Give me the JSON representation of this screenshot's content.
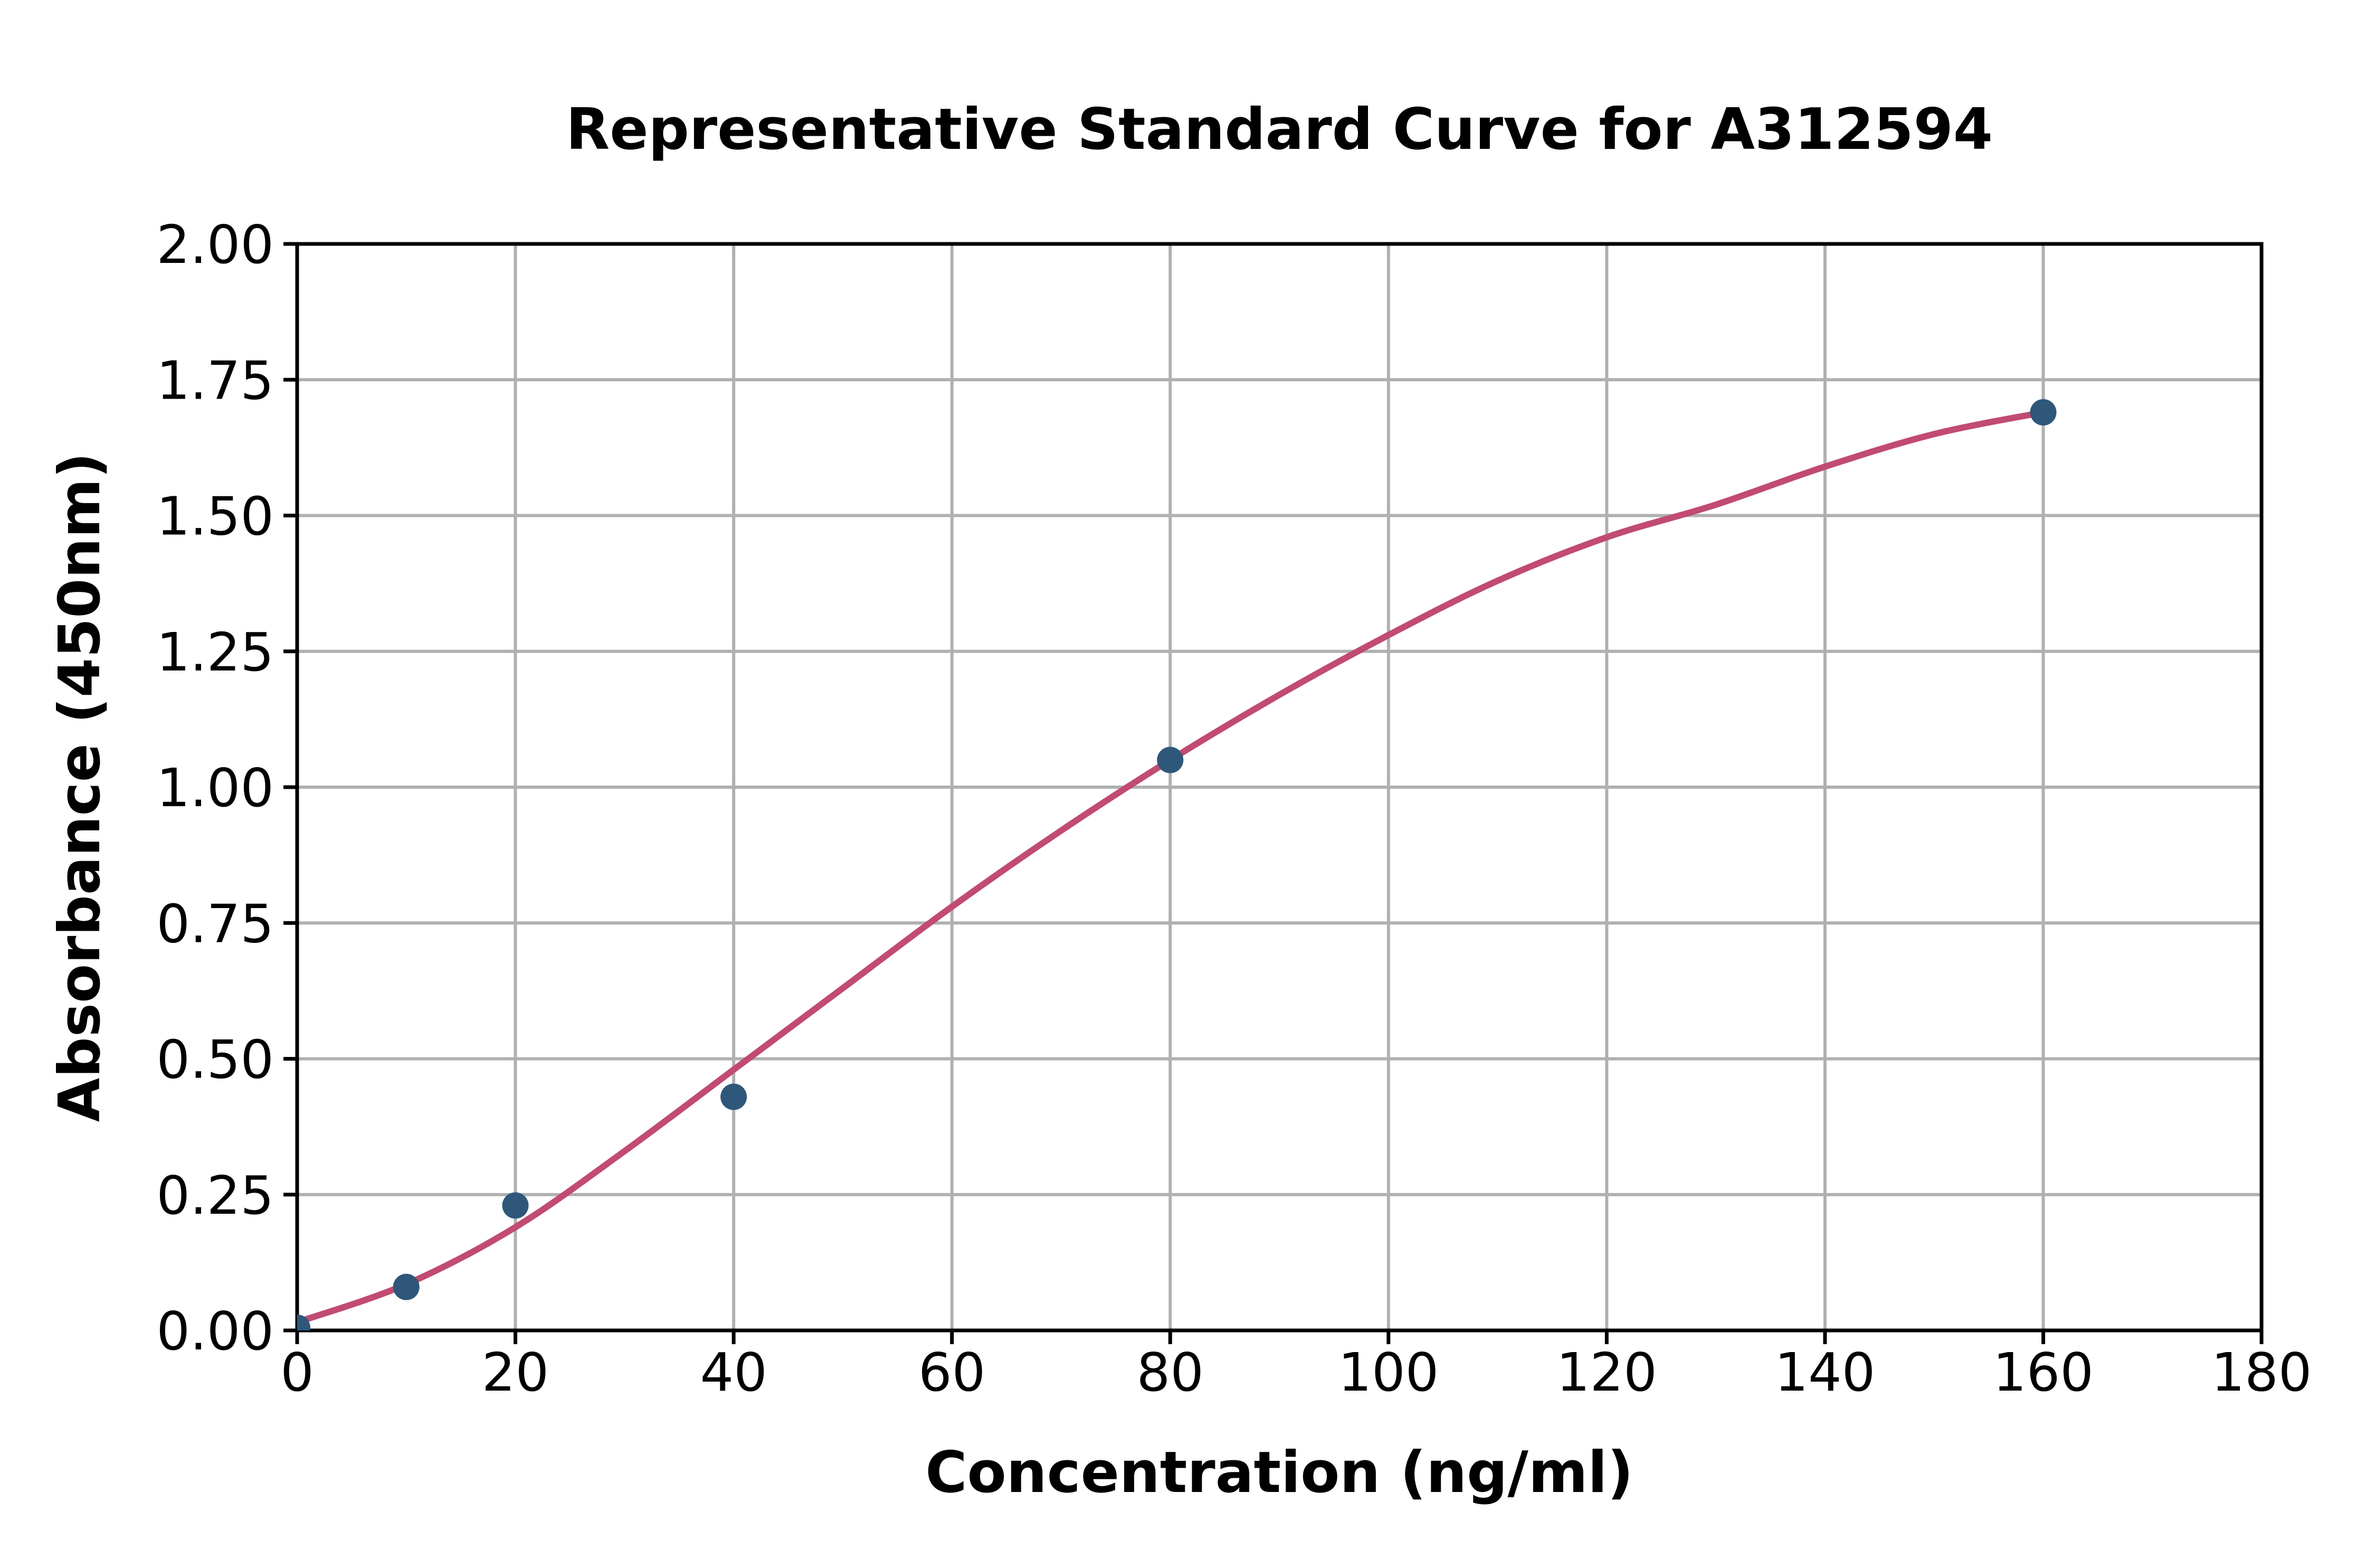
{
  "chart_data": {
    "type": "scatter",
    "title": "Representative Standard Curve for A312594",
    "xlabel": "Concentration (ng/ml)",
    "ylabel": "Absorbance (450nm)",
    "xlim": [
      0,
      180
    ],
    "ylim": [
      0.0,
      2.0
    ],
    "grid": true,
    "legend": "none",
    "x_ticks": {
      "values": [
        0,
        20,
        40,
        60,
        80,
        100,
        120,
        140,
        160,
        180
      ],
      "labels": [
        "0",
        "20",
        "40",
        "60",
        "80",
        "100",
        "120",
        "140",
        "160",
        "180"
      ]
    },
    "y_ticks": {
      "values": [
        0.0,
        0.25,
        0.5,
        0.75,
        1.0,
        1.25,
        1.5,
        1.75,
        2.0
      ],
      "labels": [
        "0.00",
        "0.25",
        "0.50",
        "0.75",
        "1.00",
        "1.25",
        "1.50",
        "1.75",
        "2.00"
      ]
    },
    "series": [
      {
        "name": "standard-points",
        "kind": "scatter",
        "color": "#2F577A",
        "points": [
          [
            0,
            0.005
          ],
          [
            10,
            0.08
          ],
          [
            20,
            0.23
          ],
          [
            40,
            0.43
          ],
          [
            80,
            1.05
          ],
          [
            160,
            1.69
          ]
        ]
      },
      {
        "name": "fit-curve",
        "kind": "line",
        "color": "#C14B72",
        "points": [
          [
            0,
            0.015
          ],
          [
            10,
            0.085
          ],
          [
            20,
            0.19
          ],
          [
            30,
            0.33
          ],
          [
            40,
            0.48
          ],
          [
            50,
            0.63
          ],
          [
            60,
            0.78
          ],
          [
            70,
            0.92
          ],
          [
            80,
            1.05
          ],
          [
            90,
            1.17
          ],
          [
            100,
            1.28
          ],
          [
            110,
            1.38
          ],
          [
            120,
            1.46
          ],
          [
            130,
            1.52
          ],
          [
            140,
            1.59
          ],
          [
            150,
            1.65
          ],
          [
            160,
            1.69
          ]
        ]
      }
    ],
    "colors": {
      "grid": "#B0B0B0",
      "axes": "#000000",
      "background": "#FFFFFF",
      "marker": "#2F577A",
      "curve": "#C14B72"
    }
  }
}
